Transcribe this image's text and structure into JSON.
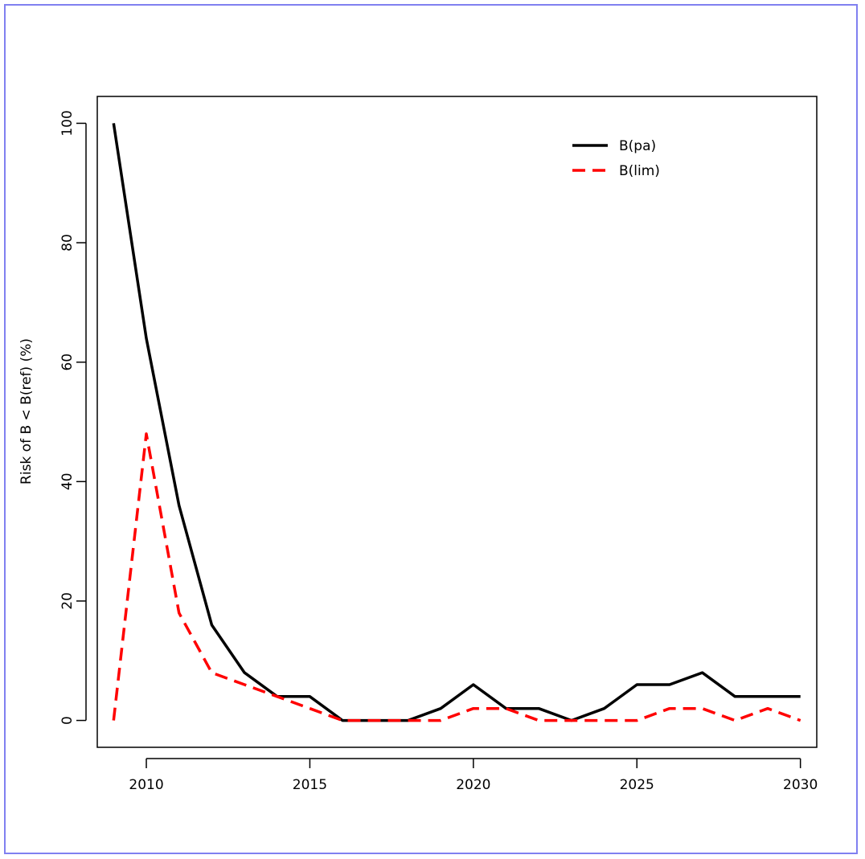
{
  "chart_data": {
    "type": "line",
    "title": "",
    "xlabel": "",
    "ylabel": "Risk of B < B(ref) (%)",
    "xlim": [
      2008.5,
      2030.5
    ],
    "ylim": [
      -4.5,
      104.5
    ],
    "xticks": [
      2010,
      2015,
      2020,
      2025,
      2030
    ],
    "yticks": [
      0,
      20,
      40,
      60,
      80,
      100
    ],
    "grid": false,
    "legend_position": "top-right",
    "x": [
      2009,
      2010,
      2011,
      2012,
      2013,
      2014,
      2015,
      2016,
      2017,
      2018,
      2019,
      2020,
      2021,
      2022,
      2023,
      2024,
      2025,
      2026,
      2027,
      2028,
      2029,
      2030
    ],
    "series": [
      {
        "name": "B(pa)",
        "color": "#000000",
        "style": "solid",
        "values": [
          100,
          64,
          36,
          16,
          8,
          4,
          4,
          0,
          0,
          0,
          2,
          6,
          2,
          2,
          0,
          2,
          6,
          6,
          8,
          4,
          4,
          4
        ]
      },
      {
        "name": "B(lim)",
        "color": "#ff0000",
        "style": "dashed",
        "values": [
          0,
          48,
          18,
          8,
          6,
          4,
          2,
          0,
          0,
          0,
          0,
          2,
          2,
          0,
          0,
          0,
          0,
          2,
          2,
          0,
          2,
          0
        ]
      }
    ]
  }
}
